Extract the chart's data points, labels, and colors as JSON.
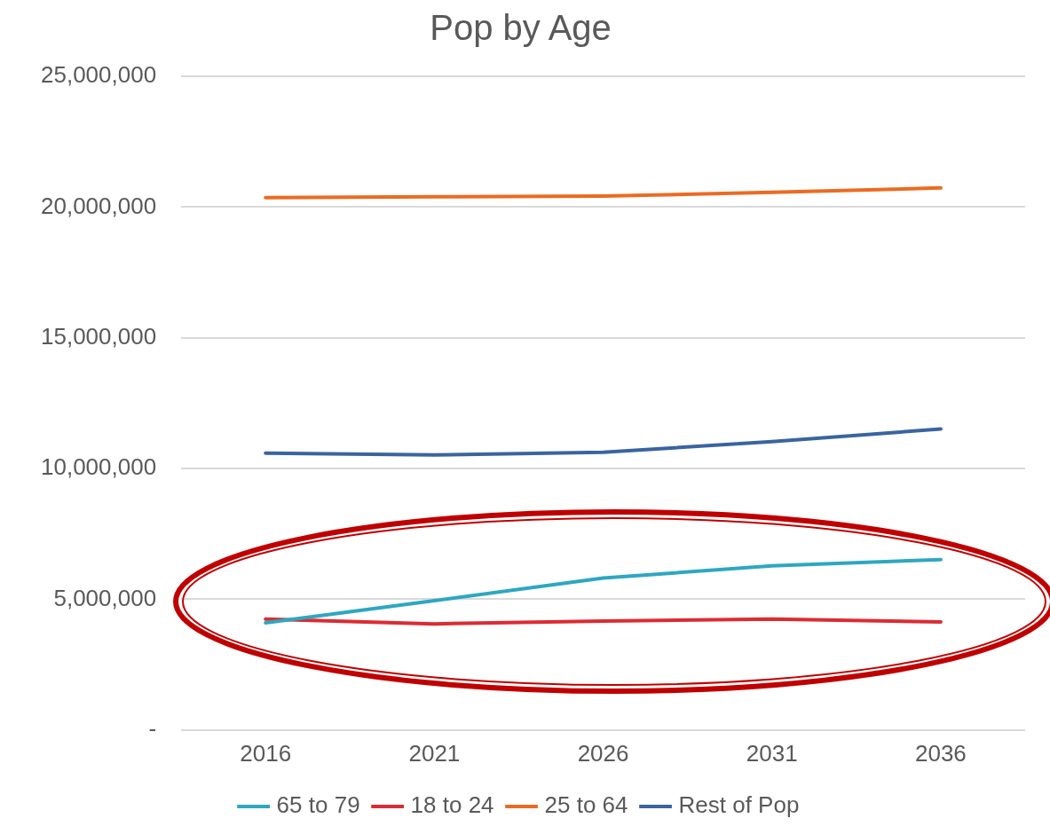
{
  "chart_data": {
    "type": "line",
    "title": "Pop by Age",
    "categories": [
      "2016",
      "2021",
      "2026",
      "2031",
      "2036"
    ],
    "series": [
      {
        "name": "65 to 79",
        "color": "#2ea7c1",
        "values": [
          4100000,
          4950000,
          5810000,
          6280000,
          6520000
        ]
      },
      {
        "name": "18 to 24",
        "color": "#dc2b33",
        "values": [
          4240000,
          4060000,
          4170000,
          4240000,
          4130000
        ]
      },
      {
        "name": "25 to 64",
        "color": "#eb6b22",
        "values": [
          20360000,
          20390000,
          20420000,
          20560000,
          20730000
        ]
      },
      {
        "name": "Rest of Pop",
        "color": "#3a64a0",
        "values": [
          10590000,
          10520000,
          10620000,
          11030000,
          11510000
        ]
      }
    ],
    "ylim": [
      0,
      25000000
    ],
    "yticks": [
      {
        "value": 0,
        "label": "-"
      },
      {
        "value": 5000000,
        "label": "5,000,000"
      },
      {
        "value": 10000000,
        "label": "10,000,000"
      },
      {
        "value": 15000000,
        "label": "15,000,000"
      },
      {
        "value": 20000000,
        "label": "20,000,000"
      },
      {
        "value": 25000000,
        "label": "25,000,000"
      }
    ],
    "grid": "y",
    "legend": "bottom",
    "marker": "none",
    "line_style": "solid"
  }
}
